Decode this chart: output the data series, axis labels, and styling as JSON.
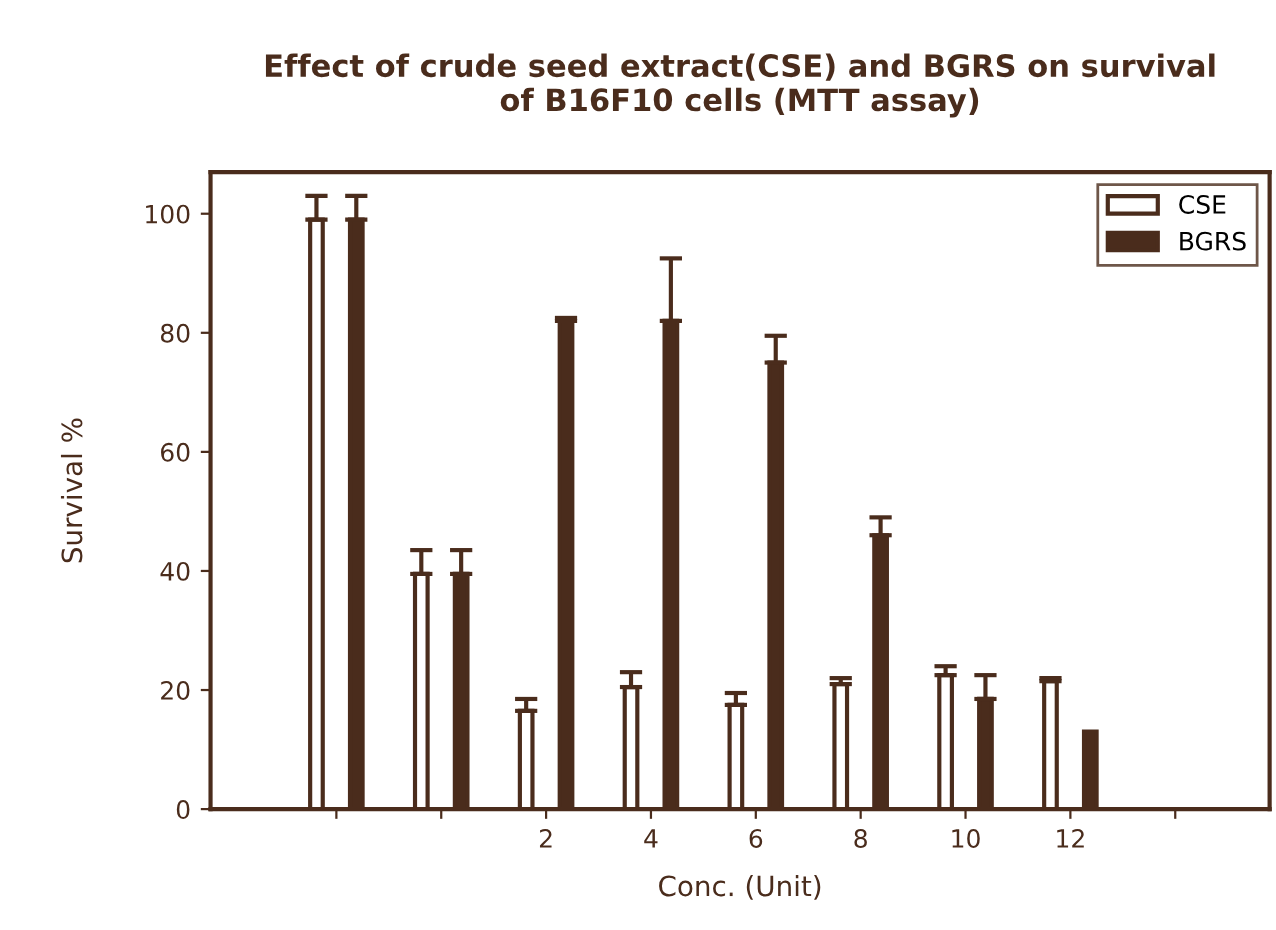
{
  "chart_data": {
    "type": "bar",
    "title": "Effect of crude seed extract(CSE) and BGRS on survival\nof B16F10 cells (MTT assay)",
    "xlabel": "Conc. (Unit)",
    "ylabel": "Survival %",
    "categories": [
      null,
      null,
      "2",
      "4",
      "6",
      "8",
      "10",
      "12",
      null
    ],
    "series": [
      {
        "name": "CSE",
        "color": "#ffffff",
        "values": [
          99,
          39.5,
          16.5,
          20.5,
          17.5,
          21,
          22.5,
          21.5,
          null
        ],
        "errors": [
          [
            99,
            103
          ],
          [
            39.5,
            43.5
          ],
          [
            16.5,
            18.5
          ],
          [
            20.5,
            23
          ],
          [
            17.5,
            19.5
          ],
          [
            21,
            22
          ],
          [
            22.5,
            24
          ],
          [
            21.5,
            22
          ],
          null
        ]
      },
      {
        "name": "BGRS",
        "color": "#4a2c1c",
        "values": [
          99,
          39.5,
          82,
          82,
          75,
          46,
          18.5,
          13,
          null
        ],
        "errors": [
          [
            99,
            103
          ],
          [
            39.5,
            43.5
          ],
          [
            82,
            82.5
          ],
          [
            82,
            92.5
          ],
          [
            75,
            79.5
          ],
          [
            46,
            49
          ],
          [
            18.5,
            22.5
          ],
          null,
          null
        ]
      }
    ],
    "ylim": [
      0,
      107
    ],
    "yticks": [
      0,
      20,
      40,
      60,
      80,
      100
    ],
    "legend": "top right"
  }
}
